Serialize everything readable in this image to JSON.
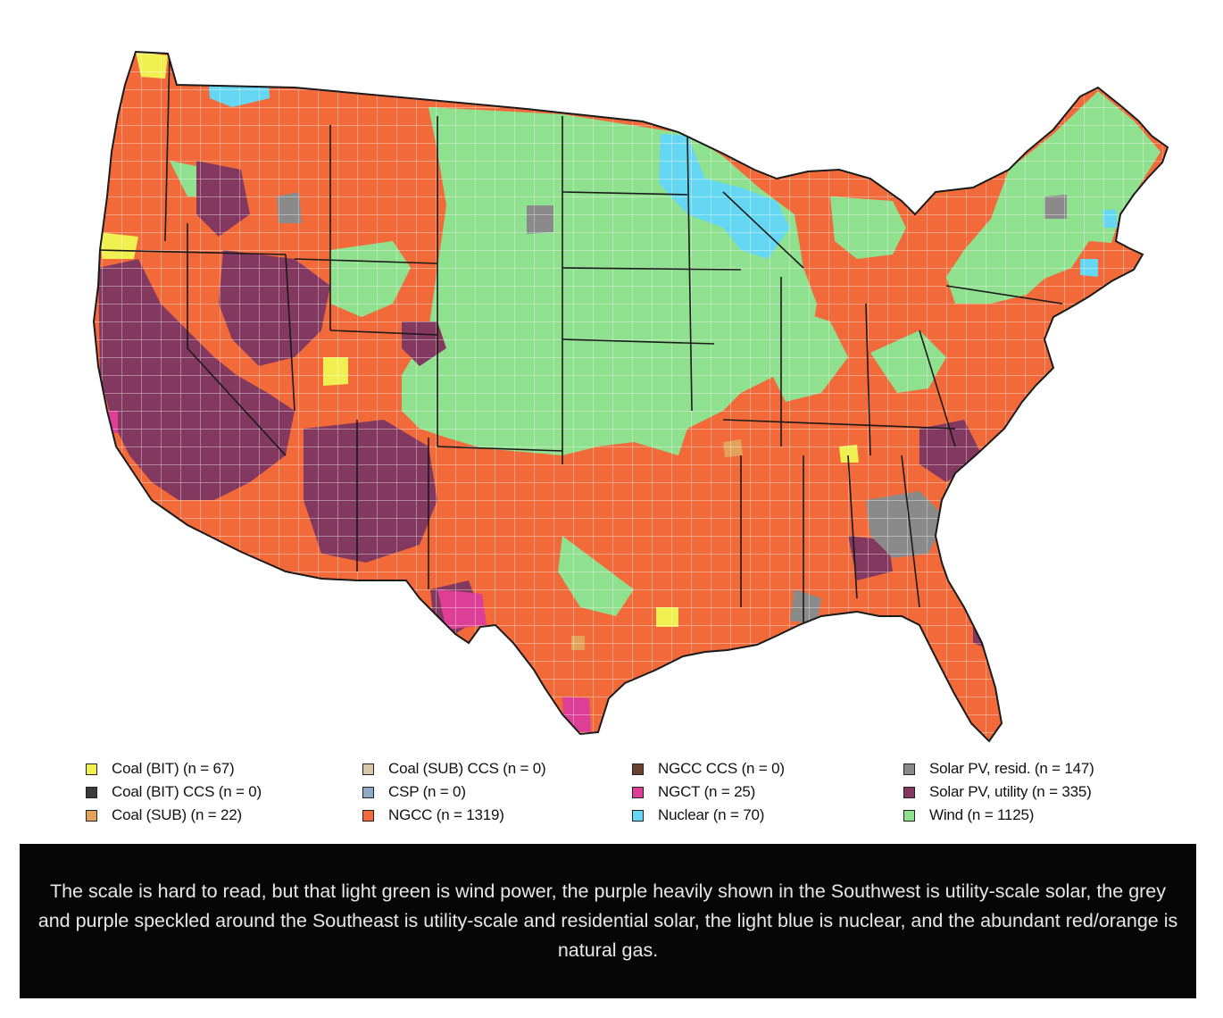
{
  "map": {
    "fills": {
      "coal_bit": "#f0f050",
      "coal_bit_ccs": "#3a3a3a",
      "coal_sub": "#e3a25a",
      "coal_sub_ccs": "#d8c8a8",
      "csp": "#8fa8c8",
      "ngcc": "#f26a3a",
      "ngcc_ccs": "#6a4030",
      "ngct": "#dd3f96",
      "nuclear": "#66d7f3",
      "solar_resid": "#8a8a8a",
      "solar_utility": "#83395f",
      "wind": "#8fe08f",
      "border": "#1a1a1a",
      "county_line": "#ffffff"
    }
  },
  "legend": [
    {
      "label": "Coal (BIT) (n = 67)",
      "color": "#f0f050"
    },
    {
      "label": "Coal (BIT) CCS (n = 0)",
      "color": "#3a3a3a"
    },
    {
      "label": "Coal (SUB) (n = 22)",
      "color": "#e3a25a"
    },
    {
      "label": "Coal (SUB) CCS (n = 0)",
      "color": "#d8c8a8"
    },
    {
      "label": "CSP (n = 0)",
      "color": "#8fa8c8"
    },
    {
      "label": "NGCC (n = 1319)",
      "color": "#f26a3a"
    },
    {
      "label": "NGCC CCS (n = 0)",
      "color": "#6a4030"
    },
    {
      "label": "NGCT (n = 25)",
      "color": "#dd3f96"
    },
    {
      "label": "Nuclear (n = 70)",
      "color": "#66d7f3"
    },
    {
      "label": "Solar PV, resid. (n = 147)",
      "color": "#8a8a8a"
    },
    {
      "label": "Solar PV, utility (n = 335)",
      "color": "#83395f"
    },
    {
      "label": "Wind (n = 1125)",
      "color": "#8fe08f"
    }
  ],
  "caption": {
    "text": "The scale is hard to read, but that light green is wind power, the purple heavily shown in the Southwest is utility-scale solar, the grey and purple speckled around the Southeast is utility-scale and residential solar, the light blue is nuclear, and the abundant red/orange is natural gas."
  }
}
